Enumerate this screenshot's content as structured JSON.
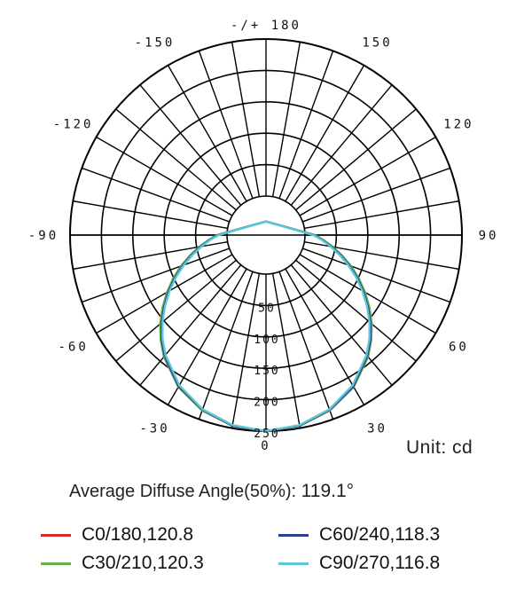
{
  "chart_data": {
    "type": "polar-line",
    "unit_label": "Unit: cd",
    "radial_axis": {
      "max": 250,
      "step": 50,
      "tick_labels": [
        "50",
        "100",
        "150",
        "200",
        "250"
      ]
    },
    "angle_labels": [
      "-/+ 180",
      "150",
      "120",
      "90",
      "60",
      "30",
      "0",
      "-30",
      "-60",
      "-90",
      "-120",
      "-150"
    ],
    "angle_label_values": [
      180,
      150,
      120,
      90,
      60,
      30,
      0,
      -30,
      -60,
      -90,
      -120,
      -150
    ],
    "average_diffuse_angle": {
      "label": "Average Diffuse Angle(50%):",
      "value": "119.1°"
    },
    "series": [
      {
        "name": "C0/180,120.8",
        "color": "#d62a2a",
        "peak": 250,
        "angles": [
          0,
          10,
          20,
          30,
          40,
          45,
          50,
          55,
          60,
          65,
          70,
          75,
          80,
          85,
          90
        ],
        "values": [
          250,
          246,
          235,
          217,
          190,
          174,
          156,
          137,
          118,
          99,
          80,
          62,
          45,
          29,
          15
        ]
      },
      {
        "name": "C30/210,120.3",
        "color": "#6ab04c",
        "peak": 250,
        "angles": [
          0,
          10,
          20,
          30,
          40,
          45,
          50,
          55,
          60,
          65,
          70,
          75,
          80,
          85,
          90
        ],
        "values": [
          250,
          246,
          235,
          217,
          191,
          175,
          158,
          139,
          120,
          101,
          82,
          63,
          46,
          30,
          16
        ]
      },
      {
        "name": "C60/240,118.3",
        "color": "#2c3e8f",
        "peak": 250,
        "angles": [
          0,
          10,
          20,
          30,
          40,
          45,
          50,
          55,
          60,
          65,
          70,
          75,
          80,
          85,
          90
        ],
        "values": [
          250,
          246,
          234,
          216,
          189,
          173,
          155,
          136,
          117,
          98,
          79,
          61,
          44,
          28,
          14
        ]
      },
      {
        "name": "C90/270,116.8",
        "color": "#5bc8d8",
        "peak": 250,
        "angles": [
          0,
          10,
          20,
          30,
          40,
          45,
          50,
          55,
          60,
          65,
          70,
          75,
          80,
          85,
          90
        ],
        "values": [
          250,
          245,
          233,
          214,
          187,
          171,
          153,
          134,
          115,
          96,
          77,
          59,
          42,
          27,
          13
        ]
      }
    ]
  }
}
